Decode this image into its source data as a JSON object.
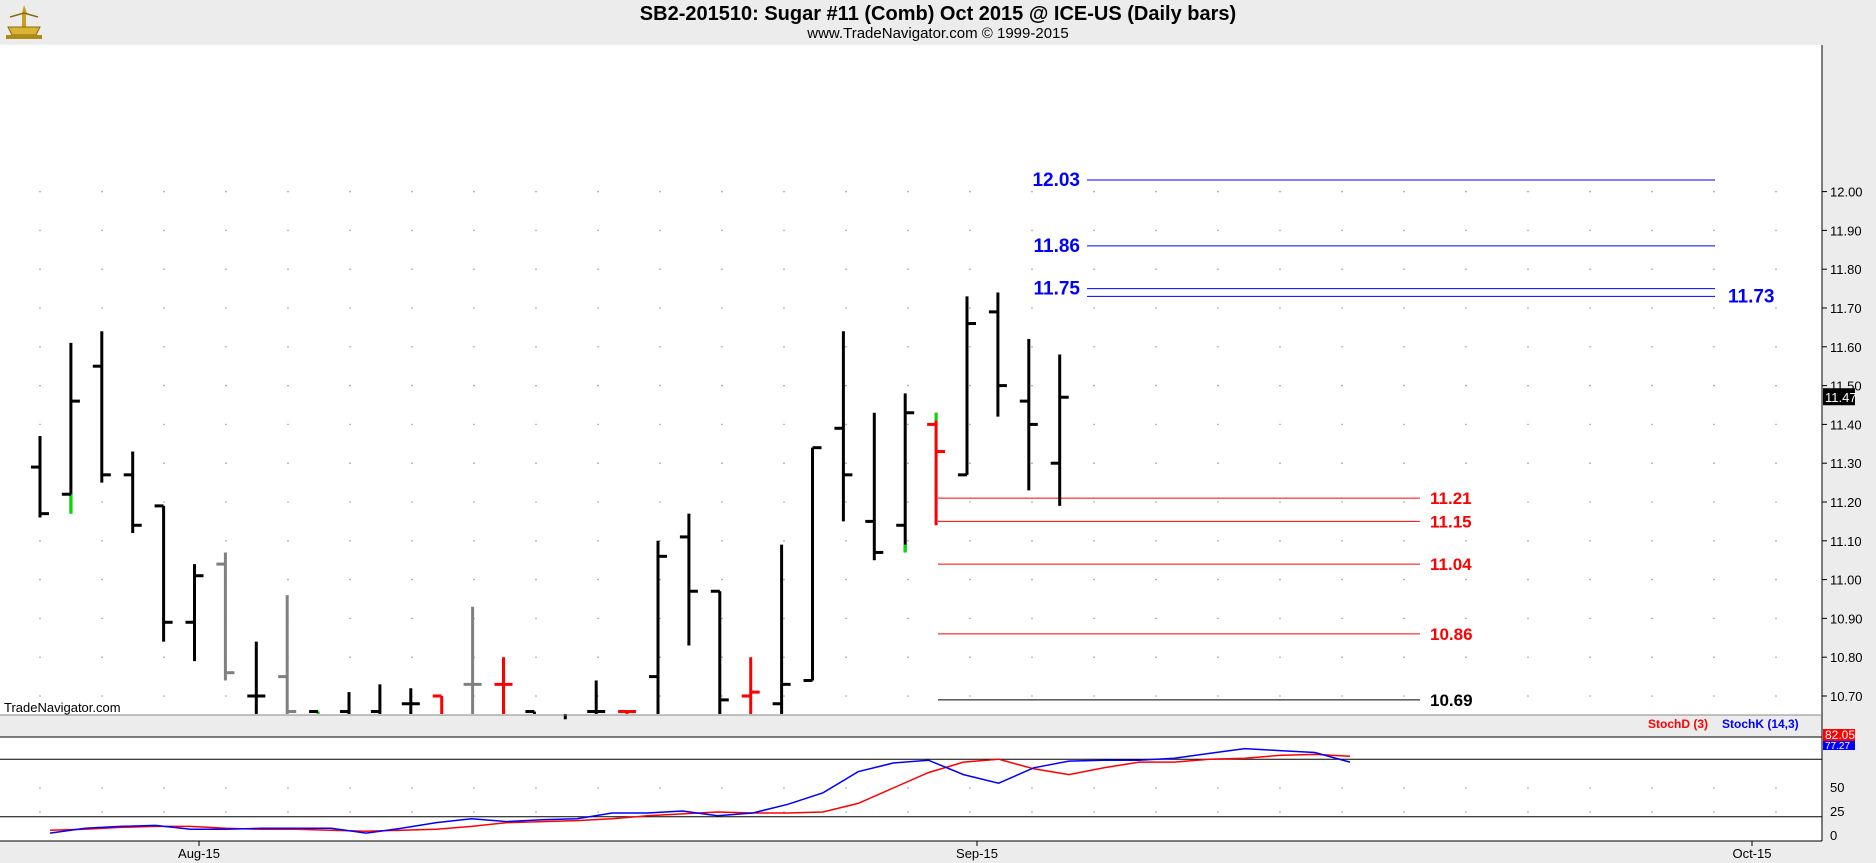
{
  "header": {
    "title": "SB2-201510:  Sugar #11 (Comb) Oct 2015 @ ICE-US  (Daily bars)",
    "subtitle": "www.TradeNavigator.com © 1999-2015"
  },
  "watermark": "TradeNavigator.com",
  "colors": {
    "up": "#000000",
    "down": "#ff0000",
    "neutral": "#808080",
    "green": "#00e000",
    "blue": "#0000ff",
    "red": "#ff0000"
  },
  "chart_data": [
    {
      "type": "ohlc",
      "name": "price",
      "ylim": [
        10.65,
        12.08
      ],
      "y_ticks": [
        "12.00",
        "11.90",
        "11.80",
        "11.70",
        "11.60",
        "11.50",
        "11.40",
        "11.30",
        "11.20",
        "11.10",
        "11.00",
        "10.90",
        "10.80",
        "10.70"
      ],
      "x_ticks": [
        "Aug-15",
        "Sep-15",
        "Oct-15"
      ],
      "last_price": "11.47",
      "bars": [
        {
          "o": 11.29,
          "h": 11.37,
          "l": 11.16,
          "c": 11.17,
          "col": "up"
        },
        {
          "o": 11.22,
          "h": 11.61,
          "l": 11.17,
          "c": 11.46,
          "col": "up",
          "g": [
            11.17,
            11.22
          ]
        },
        {
          "o": 11.55,
          "h": 11.64,
          "l": 11.25,
          "c": 11.27,
          "col": "up"
        },
        {
          "o": 11.27,
          "h": 11.33,
          "l": 11.12,
          "c": 11.14,
          "col": "up"
        },
        {
          "o": 11.19,
          "h": 11.19,
          "l": 10.84,
          "c": 10.89,
          "col": "up"
        },
        {
          "o": 10.89,
          "h": 11.04,
          "l": 10.79,
          "c": 11.01,
          "col": "up"
        },
        {
          "o": 11.04,
          "h": 11.07,
          "l": 10.74,
          "c": 10.76,
          "col": "neutral"
        },
        {
          "o": 10.7,
          "h": 10.84,
          "l": 10.6,
          "c": 10.7,
          "col": "up"
        },
        {
          "o": 10.75,
          "h": 10.96,
          "l": 10.55,
          "c": 10.66,
          "col": "neutral"
        },
        {
          "o": 10.66,
          "h": 10.66,
          "l": 10.55,
          "c": 10.62,
          "col": "up",
          "g": [
            10.62,
            10.66
          ]
        },
        {
          "o": 10.66,
          "h": 10.71,
          "l": 10.55,
          "c": 10.62,
          "col": "up"
        },
        {
          "o": 10.66,
          "h": 10.73,
          "l": 10.55,
          "c": 10.62,
          "col": "up"
        },
        {
          "o": 10.68,
          "h": 10.72,
          "l": 10.55,
          "c": 10.68,
          "col": "up"
        },
        {
          "o": 10.7,
          "h": 10.7,
          "l": 10.55,
          "c": 10.62,
          "col": "down"
        },
        {
          "o": 10.73,
          "h": 10.93,
          "l": 10.55,
          "c": 10.73,
          "col": "neutral"
        },
        {
          "o": 10.73,
          "h": 10.8,
          "l": 10.55,
          "c": 10.73,
          "col": "down"
        },
        {
          "o": 10.66,
          "h": 10.66,
          "l": 10.55,
          "c": 10.62,
          "col": "up"
        },
        {
          "o": 10.62,
          "h": 10.64,
          "l": 10.55,
          "c": 10.6,
          "col": "up"
        },
        {
          "o": 10.66,
          "h": 10.74,
          "l": 10.55,
          "c": 10.66,
          "col": "up"
        },
        {
          "o": 10.66,
          "h": 10.66,
          "l": 10.55,
          "c": 10.66,
          "col": "down"
        },
        {
          "o": 10.75,
          "h": 11.1,
          "l": 10.62,
          "c": 11.06,
          "col": "up"
        },
        {
          "o": 11.11,
          "h": 11.17,
          "l": 10.83,
          "c": 10.97,
          "col": "up"
        },
        {
          "o": 10.97,
          "h": 10.97,
          "l": 10.6,
          "c": 10.69,
          "col": "up"
        },
        {
          "o": 10.7,
          "h": 10.8,
          "l": 10.6,
          "c": 10.71,
          "col": "down"
        },
        {
          "o": 10.68,
          "h": 11.09,
          "l": 10.6,
          "c": 10.73,
          "col": "up"
        },
        {
          "o": 10.74,
          "h": 11.34,
          "l": 10.74,
          "c": 11.34,
          "col": "up"
        },
        {
          "o": 11.39,
          "h": 11.64,
          "l": 11.15,
          "c": 11.27,
          "col": "up"
        },
        {
          "o": 11.15,
          "h": 11.43,
          "l": 11.05,
          "c": 11.07,
          "col": "up"
        },
        {
          "o": 11.14,
          "h": 11.48,
          "l": 11.07,
          "c": 11.43,
          "col": "up",
          "g": [
            11.07,
            11.09
          ]
        },
        {
          "o": 11.4,
          "h": 11.43,
          "l": 11.14,
          "c": 11.33,
          "col": "down",
          "g": [
            11.41,
            11.43
          ]
        },
        {
          "o": 11.27,
          "h": 11.73,
          "l": 11.27,
          "c": 11.66,
          "col": "up"
        },
        {
          "o": 11.69,
          "h": 11.74,
          "l": 11.42,
          "c": 11.5,
          "col": "up"
        },
        {
          "o": 11.46,
          "h": 11.62,
          "l": 11.23,
          "c": 11.4,
          "col": "up"
        },
        {
          "o": 11.3,
          "h": 11.58,
          "l": 11.19,
          "c": 11.47,
          "col": "up"
        }
      ],
      "levels": [
        {
          "value": 12.03,
          "label": "12.03",
          "color": "blue",
          "label_side": "left"
        },
        {
          "value": 11.86,
          "label": "11.86",
          "color": "blue",
          "label_side": "left"
        },
        {
          "value": 11.75,
          "label": "11.75",
          "color": "blue",
          "label_side": "left"
        },
        {
          "value": 11.73,
          "label": "11.73",
          "color": "blue",
          "label_side": "right"
        },
        {
          "value": 11.21,
          "label": "11.21",
          "color": "red",
          "label_side": "right"
        },
        {
          "value": 11.15,
          "label": "11.15",
          "color": "red",
          "label_side": "right"
        },
        {
          "value": 11.04,
          "label": "11.04",
          "color": "red",
          "label_side": "right"
        },
        {
          "value": 10.86,
          "label": "10.86",
          "color": "red",
          "label_side": "right"
        },
        {
          "value": 10.69,
          "label": "10.69",
          "color": "black",
          "label_side": "right"
        }
      ]
    },
    {
      "type": "line",
      "name": "stochastic",
      "ylim": [
        0,
        100
      ],
      "y_ticks": [
        "0",
        "25",
        "50"
      ],
      "reference_lines": [
        20,
        80
      ],
      "legend": [
        {
          "name": "StochD (3)",
          "color": "red"
        },
        {
          "name": "StochK (14,3)",
          "color": "blue"
        }
      ],
      "value_labels": {
        "d": "82.05",
        "k": "77.27"
      },
      "series": [
        {
          "name": "StochD (3)",
          "color": "red",
          "values": [
            6,
            7,
            9,
            10,
            10,
            8,
            7,
            7,
            6,
            5,
            6,
            7,
            10,
            14,
            15,
            16,
            18,
            21,
            23,
            25,
            24,
            24,
            25,
            34,
            50,
            66,
            77,
            80,
            70,
            64,
            71,
            77,
            77,
            80,
            81,
            84,
            85,
            83
          ]
        },
        {
          "name": "StochK (14,3)",
          "color": "blue",
          "values": [
            3,
            8,
            10,
            11,
            7,
            7,
            8,
            8,
            8,
            3,
            8,
            14,
            18,
            15,
            17,
            18,
            24,
            24,
            26,
            21,
            24,
            33,
            45,
            67,
            76,
            79,
            64,
            55,
            71,
            78,
            79,
            79,
            81,
            86,
            91,
            89,
            87,
            77
          ]
        }
      ]
    }
  ]
}
